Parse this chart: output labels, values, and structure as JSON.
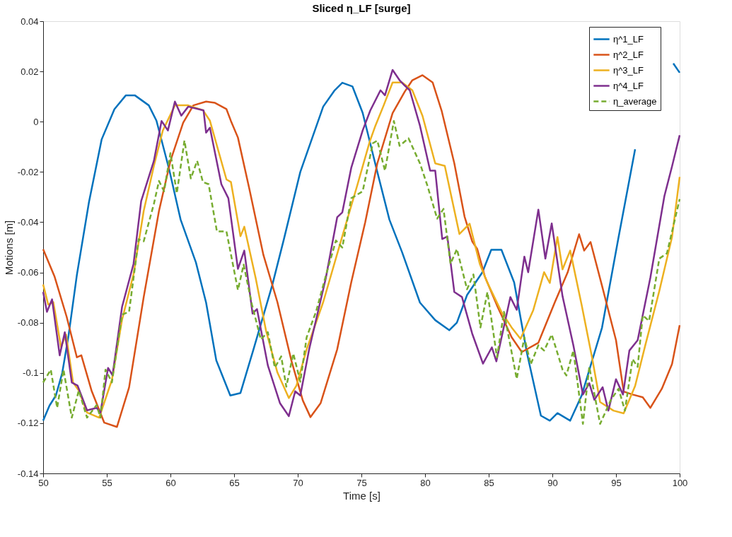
{
  "chart_data": {
    "type": "line",
    "title": "Sliced η_LF [surge]",
    "xlabel": "Time [s]",
    "ylabel": "Motions [m]",
    "xlim": [
      50,
      100
    ],
    "xticks": [
      50,
      55,
      60,
      65,
      70,
      75,
      80,
      85,
      90,
      95,
      100
    ],
    "ylim": [
      -0.14,
      0.04
    ],
    "yticks": [
      -0.14,
      -0.12,
      -0.1,
      -0.08,
      -0.06,
      -0.04,
      -0.02,
      0,
      0.02,
      0.04
    ],
    "grid": false,
    "legend": "top right",
    "line_style": "solid",
    "marker": "none",
    "series": [
      {
        "name": "η^1_LF",
        "color": "#0072bd",
        "x": [
          50,
          50.5,
          51,
          51.5,
          52,
          52.65,
          53.6,
          54.6,
          55.6,
          56.5,
          57.2,
          58.3,
          58.9,
          59.9,
          60.8,
          62,
          62.8,
          63.6,
          64.7,
          65.5,
          66.5,
          68,
          68.9,
          70.2,
          72,
          72.9,
          73.5,
          74.3,
          75.1,
          76.2,
          77.2,
          78.2,
          79.6,
          80.8,
          81.9,
          82.5,
          83.3,
          84.5,
          85.2,
          86,
          87,
          88,
          89.1,
          89.8,
          90.4,
          91.4,
          92.3,
          93.9,
          95.2,
          96.5,
          97.5,
          99.5,
          100
        ],
        "values": [
          -0.119,
          -0.113,
          -0.109,
          -0.1,
          -0.085,
          -0.061,
          -0.032,
          -0.007,
          0.005,
          0.0105,
          0.0105,
          0.0065,
          0.0004,
          -0.019,
          -0.039,
          -0.056,
          -0.072,
          -0.095,
          -0.109,
          -0.108,
          -0.091,
          -0.065,
          -0.047,
          -0.02,
          0.006,
          0.0125,
          0.0155,
          0.014,
          0.0035,
          -0.019,
          -0.039,
          -0.052,
          -0.072,
          -0.079,
          -0.083,
          -0.08,
          -0.069,
          -0.06,
          -0.051,
          -0.051,
          -0.064,
          -0.092,
          -0.117,
          -0.119,
          -0.116,
          -0.119,
          -0.109,
          -0.082,
          -0.046,
          -0.011,
          null,
          0.0232,
          0.0195
        ]
      },
      {
        "name": "η^2_LF",
        "color": "#d95319",
        "x": [
          50,
          50.9,
          51.85,
          52.65,
          53,
          53.8,
          54.8,
          55.8,
          56.75,
          57.9,
          59.1,
          60,
          61,
          61.8,
          62.8,
          63.5,
          64.4,
          64.75,
          65.3,
          66.2,
          67.3,
          68.4,
          69.5,
          70.4,
          71,
          71.8,
          73.1,
          74.2,
          75.3,
          76.25,
          77.45,
          78.4,
          79,
          79.8,
          80.6,
          81.3,
          82.3,
          83.1,
          83.7,
          84.1,
          84.7,
          85.7,
          86.8,
          87.6,
          88.9,
          90.2,
          91.2,
          92.1,
          92.5,
          93,
          93.9,
          95,
          95.6,
          96.3,
          97.1,
          97.7,
          98.6,
          99.4,
          100
        ],
        "values": [
          -0.0508,
          -0.0617,
          -0.0777,
          -0.0938,
          -0.093,
          -0.107,
          -0.1198,
          -0.1215,
          -0.1058,
          -0.0698,
          -0.0355,
          -0.0156,
          -0.0004,
          0.0065,
          0.008,
          0.0075,
          0.005,
          0.0003,
          -0.0063,
          -0.0268,
          -0.053,
          -0.0718,
          -0.0951,
          -0.111,
          -0.1176,
          -0.112,
          -0.0906,
          -0.064,
          -0.04,
          -0.0166,
          0.0034,
          0.0119,
          0.0165,
          0.0185,
          0.0156,
          0.0044,
          -0.0166,
          -0.0377,
          -0.0476,
          -0.0507,
          -0.0617,
          -0.0737,
          -0.0858,
          -0.0917,
          -0.088,
          -0.0718,
          -0.06,
          -0.0448,
          -0.0513,
          -0.0479,
          -0.0653,
          -0.087,
          -0.1074,
          -0.1086,
          -0.1097,
          -0.1139,
          -0.1063,
          -0.0965,
          -0.081
        ]
      },
      {
        "name": "η^3_LF",
        "color": "#edb120",
        "x": [
          50,
          50.4,
          50.8,
          51.4,
          51.8,
          52.35,
          52.8,
          53.45,
          54.4,
          55.4,
          56.2,
          57.1,
          57.9,
          58.7,
          59.4,
          60.35,
          61.4,
          62.55,
          63.1,
          64.4,
          64.75,
          65.5,
          65.8,
          66.7,
          67.5,
          68.4,
          69.3,
          69.9,
          70.7,
          72,
          73.5,
          74.7,
          75.65,
          76.1,
          76.75,
          77.45,
          78.2,
          79,
          79.8,
          80.8,
          81.55,
          82.7,
          83.5,
          84.3,
          84.85,
          86,
          86.8,
          87.5,
          88.5,
          89.35,
          89.8,
          90.4,
          90.8,
          91.4,
          92.3,
          93.1,
          93.75,
          94.8,
          95.6,
          96.5,
          97.3,
          98.4,
          99.4,
          100
        ],
        "values": [
          -0.0648,
          -0.0728,
          -0.0718,
          -0.0897,
          -0.0847,
          -0.1038,
          -0.107,
          -0.1158,
          -0.1178,
          -0.1028,
          -0.0788,
          -0.0607,
          -0.0355,
          -0.0176,
          -0.0035,
          0.0065,
          0.0065,
          0.0046,
          0.0004,
          -0.023,
          -0.024,
          -0.0456,
          -0.0418,
          -0.0624,
          -0.083,
          -0.0998,
          -0.11,
          -0.105,
          -0.0906,
          -0.0718,
          -0.0456,
          -0.0249,
          -0.008,
          -0.0016,
          0.0065,
          0.0156,
          0.0156,
          0.0125,
          0.0023,
          -0.0166,
          -0.0176,
          -0.0447,
          -0.0406,
          -0.0566,
          -0.0636,
          -0.0757,
          -0.0819,
          -0.0864,
          -0.075,
          -0.0599,
          -0.0642,
          -0.0459,
          -0.0588,
          -0.0513,
          -0.0729,
          -0.0934,
          -0.1116,
          -0.115,
          -0.1161,
          -0.1052,
          -0.089,
          -0.0674,
          -0.0459,
          -0.022
        ]
      },
      {
        "name": "η^4_LF",
        "color": "#7e2f8e",
        "x": [
          50,
          50.3,
          50.7,
          51.3,
          51.7,
          52.25,
          52.7,
          53.45,
          54.2,
          54.5,
          55.1,
          55.45,
          56.2,
          57.1,
          57.7,
          58.7,
          59.3,
          59.8,
          60.35,
          60.85,
          61.4,
          62.6,
          62.8,
          63.1,
          64,
          64.55,
          65.3,
          65.8,
          66.45,
          66.8,
          67.65,
          68.6,
          69.3,
          69.8,
          70.2,
          70.9,
          72.2,
          73.1,
          73.5,
          74.2,
          75.1,
          75.7,
          76.5,
          76.85,
          77.45,
          78,
          78.4,
          78.8,
          79.6,
          80.4,
          80.8,
          81.35,
          81.75,
          82.3,
          82.9,
          83.7,
          84.55,
          85.25,
          85.6,
          86.7,
          87.2,
          87.8,
          88.1,
          88.9,
          89.45,
          89.95,
          90.8,
          91.65,
          92.4,
          92.9,
          93.3,
          93.95,
          94.4,
          95,
          95.55,
          96.05,
          96.7,
          97.7,
          98.8,
          99.4,
          100
        ],
        "values": [
          -0.0678,
          -0.0757,
          -0.0707,
          -0.093,
          -0.0838,
          -0.1038,
          -0.105,
          -0.1149,
          -0.1139,
          -0.1158,
          -0.098,
          -0.1009,
          -0.0737,
          -0.0566,
          -0.0316,
          -0.0156,
          0.0003,
          -0.0035,
          0.008,
          0.0024,
          0.006,
          0.0045,
          -0.0044,
          -0.0024,
          -0.0249,
          -0.0305,
          -0.0586,
          -0.0513,
          -0.0764,
          -0.0746,
          -0.097,
          -0.112,
          -0.1172,
          -0.1073,
          -0.109,
          -0.0905,
          -0.0624,
          -0.038,
          -0.0361,
          -0.0184,
          -0.0035,
          0.0045,
          0.0125,
          0.0105,
          0.0206,
          0.0165,
          0.0144,
          0.0125,
          -0.0016,
          -0.0195,
          -0.0195,
          -0.0467,
          -0.0457,
          -0.0678,
          -0.0698,
          -0.0843,
          -0.0963,
          -0.0898,
          -0.0954,
          -0.0698,
          -0.0749,
          -0.0537,
          -0.0599,
          -0.035,
          -0.0545,
          -0.0405,
          -0.0695,
          -0.089,
          -0.1086,
          -0.1041,
          -0.1107,
          -0.1057,
          -0.115,
          -0.1025,
          -0.1086,
          -0.0911,
          -0.087,
          -0.062,
          -0.0296,
          -0.0178,
          -0.0054
        ]
      },
      {
        "name": "η_average",
        "color": "#77ac30",
        "line_style": "dashed",
        "x": [
          50,
          50.6,
          51.1,
          51.6,
          52.25,
          52.8,
          53.45,
          54.2,
          54.5,
          54.9,
          55.4,
          56.2,
          56.75,
          57.5,
          57.9,
          58.7,
          59.1,
          59.5,
          60,
          60.5,
          61.1,
          61.6,
          62.1,
          62.55,
          63,
          63.65,
          64.4,
          65.3,
          65.75,
          66.4,
          67.1,
          67.65,
          68.2,
          68.7,
          69.1,
          69.65,
          70.2,
          70.7,
          71.45,
          72.2,
          73,
          73.5,
          74.2,
          75.1,
          75.9,
          76.25,
          76.85,
          77.55,
          78,
          78.7,
          79.6,
          80.2,
          80.95,
          81.45,
          82,
          82.5,
          83.3,
          83.8,
          84.35,
          84.9,
          85.65,
          86.2,
          87.2,
          87.8,
          88.3,
          88.9,
          89.35,
          89.95,
          90.8,
          91.1,
          91.65,
          92.4,
          92.9,
          93.75,
          94.6,
          95.2,
          95.7,
          96.3,
          96.7,
          97.1,
          97.6,
          98.4,
          99,
          100
        ],
        "values": [
          -0.1038,
          -0.0987,
          -0.1139,
          -0.0987,
          -0.1178,
          -0.107,
          -0.1178,
          -0.1128,
          -0.1178,
          -0.0987,
          -0.1038,
          -0.0768,
          -0.0757,
          -0.0468,
          -0.0476,
          -0.0327,
          -0.0236,
          -0.0277,
          -0.0125,
          -0.0285,
          -0.0075,
          -0.0226,
          -0.0156,
          -0.024,
          -0.0249,
          -0.0437,
          -0.0437,
          -0.067,
          -0.0569,
          -0.0727,
          -0.0867,
          -0.0838,
          -0.0979,
          -0.0934,
          -0.1055,
          -0.0923,
          -0.1035,
          -0.0858,
          -0.0754,
          -0.0614,
          -0.0473,
          -0.0501,
          -0.0305,
          -0.0277,
          -0.0086,
          -0.0075,
          -0.0195,
          0.0003,
          -0.0096,
          -0.0066,
          -0.0166,
          -0.0257,
          -0.0386,
          -0.0347,
          -0.0566,
          -0.0507,
          -0.0667,
          -0.0608,
          -0.0819,
          -0.0678,
          -0.0938,
          -0.0757,
          -0.1024,
          -0.0858,
          -0.0966,
          -0.089,
          -0.0911,
          -0.0847,
          -0.0987,
          -0.101,
          -0.0911,
          -0.1203,
          -0.0976,
          -0.1203,
          -0.1107,
          -0.1063,
          -0.115,
          -0.0945,
          -0.0976,
          -0.0771,
          -0.0793,
          -0.0545,
          -0.0524,
          -0.0308
        ]
      }
    ]
  }
}
